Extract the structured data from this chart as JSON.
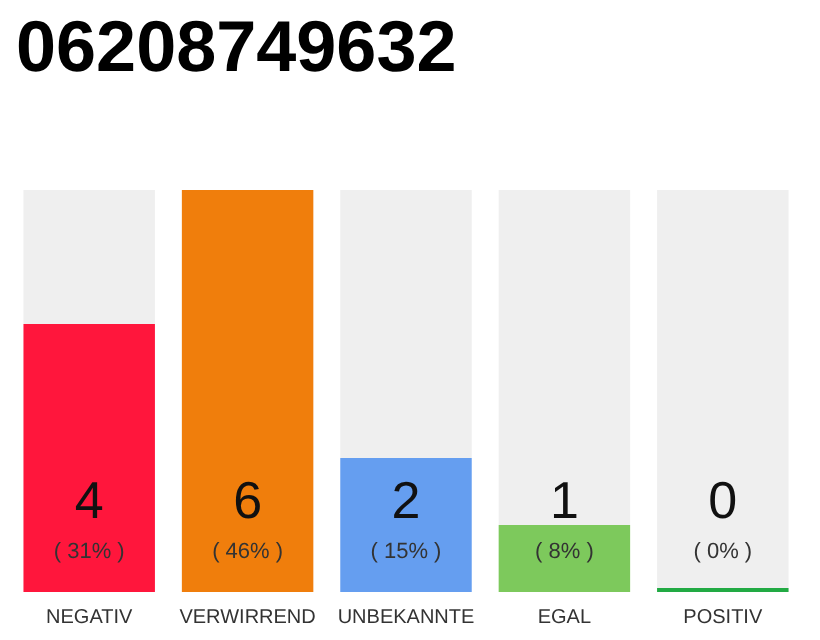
{
  "chart_data": {
    "type": "bar",
    "title": "06208749632",
    "categories": [
      "NEGATIV",
      "VERWIRREND",
      "UNBEKANNTE",
      "EGAL",
      "POSITIV"
    ],
    "stacked": true,
    "series": [
      {
        "colors": [
          "#ff163c",
          "#f07e0c",
          "#659ef0",
          "#7dc95c",
          "#22aa44"
        ],
        "values": [
          4,
          6,
          2,
          1,
          0
        ],
        "value_labels": [
          "4\n( 31% )",
          "6\n( 46% )",
          "2\n( 15% )",
          "1\n( 8% )",
          "0\n( 0% )"
        ]
      },
      {
        "color": "#efefef",
        "values": [
          2,
          0,
          4,
          5,
          6
        ]
      }
    ],
    "ylim": [
      0,
      6
    ],
    "tick_labels": "x",
    "grid": false
  }
}
